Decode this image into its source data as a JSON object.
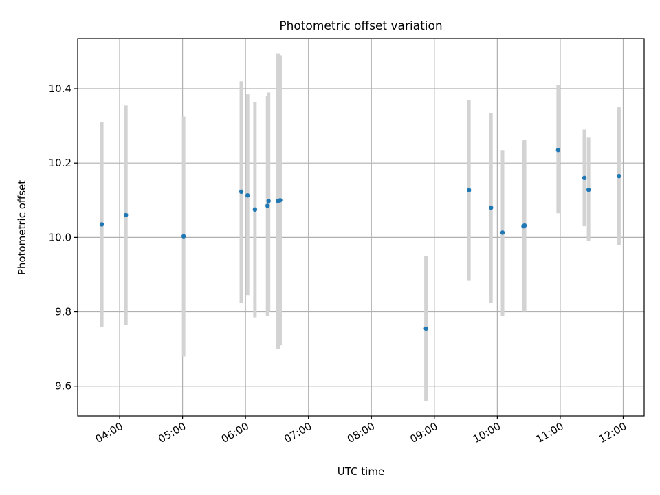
{
  "chart_data": {
    "type": "scatter",
    "title": "Photometric offset variation",
    "xlabel": "UTC time",
    "ylabel": "Photometric offset",
    "xlim": [
      "03:20",
      "12:20"
    ],
    "ylim": [
      9.52,
      10.535
    ],
    "grid": true,
    "x_ticks": [
      "04:00",
      "05:00",
      "06:00",
      "07:00",
      "08:00",
      "09:00",
      "10:00",
      "11:00",
      "12:00"
    ],
    "y_ticks": [
      "9.6",
      "9.8",
      "10.0",
      "10.2",
      "10.4"
    ],
    "marker_color": "#1f77b4",
    "errorbar_color": "#d3d3d3",
    "points": [
      {
        "x": "03:43",
        "y": 10.035,
        "ylow": 9.76,
        "yhigh": 10.31
      },
      {
        "x": "04:06",
        "y": 10.06,
        "ylow": 9.765,
        "yhigh": 10.355
      },
      {
        "x": "05:01",
        "y": 10.003,
        "ylow": 9.68,
        "yhigh": 10.325
      },
      {
        "x": "05:56",
        "y": 10.123,
        "ylow": 9.825,
        "yhigh": 10.42
      },
      {
        "x": "06:02",
        "y": 10.113,
        "ylow": 9.845,
        "yhigh": 10.385
      },
      {
        "x": "06:09",
        "y": 10.075,
        "ylow": 9.785,
        "yhigh": 10.365
      },
      {
        "x": "06:21",
        "y": 10.085,
        "ylow": 9.79,
        "yhigh": 10.38
      },
      {
        "x": "06:22",
        "y": 10.098,
        "ylow": 9.8,
        "yhigh": 10.39
      },
      {
        "x": "06:31",
        "y": 10.098,
        "ylow": 9.7,
        "yhigh": 10.495
      },
      {
        "x": "06:33",
        "y": 10.1,
        "ylow": 9.71,
        "yhigh": 10.49
      },
      {
        "x": "08:52",
        "y": 9.755,
        "ylow": 9.56,
        "yhigh": 9.95
      },
      {
        "x": "09:33",
        "y": 10.127,
        "ylow": 9.885,
        "yhigh": 10.37
      },
      {
        "x": "09:54",
        "y": 10.08,
        "ylow": 9.825,
        "yhigh": 10.335
      },
      {
        "x": "10:05",
        "y": 10.013,
        "ylow": 9.79,
        "yhigh": 10.235
      },
      {
        "x": "10:25",
        "y": 10.03,
        "ylow": 9.8,
        "yhigh": 10.26
      },
      {
        "x": "10:26",
        "y": 10.032,
        "ylow": 9.8,
        "yhigh": 10.262
      },
      {
        "x": "10:58",
        "y": 10.235,
        "ylow": 10.065,
        "yhigh": 10.41
      },
      {
        "x": "11:23",
        "y": 10.16,
        "ylow": 10.03,
        "yhigh": 10.29
      },
      {
        "x": "11:27",
        "y": 10.128,
        "ylow": 9.99,
        "yhigh": 10.268
      },
      {
        "x": "11:56",
        "y": 10.165,
        "ylow": 9.98,
        "yhigh": 10.35
      }
    ]
  }
}
